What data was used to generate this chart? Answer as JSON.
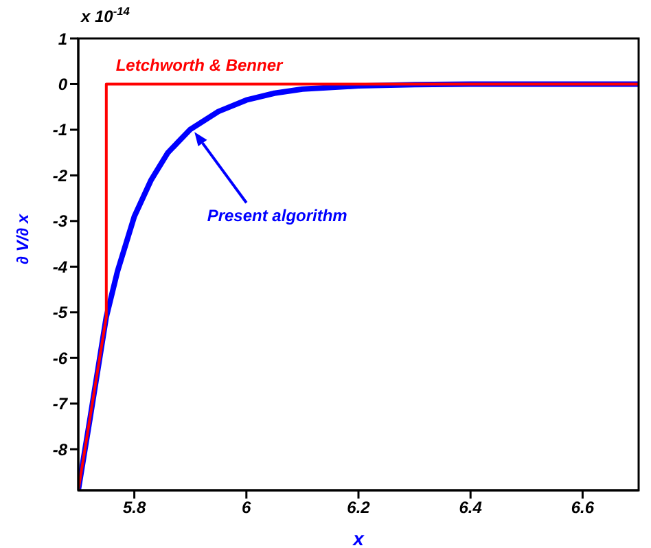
{
  "chart_data": {
    "type": "line",
    "xlabel": "x",
    "ylabel": "∂ V/∂ x",
    "annotations": [
      "x 10$^{-14}$"
    ],
    "xlim": [
      5.7,
      6.7
    ],
    "xticks": [
      5.8,
      6,
      6.2,
      6.4,
      6.6
    ],
    "ylim": [
      -8.9,
      1
    ],
    "yticks": [
      1,
      0,
      -1,
      -2,
      -3,
      -4,
      -5,
      -6,
      -7,
      -8
    ],
    "marker": "none",
    "line_style": "solid",
    "legend": false,
    "grid": false,
    "series": [
      {
        "name": "Letchworth & Benner",
        "color": "#ff0000",
        "x": [
          5.7,
          5.75,
          5.75,
          6.7
        ],
        "values": [
          -8.9,
          -5.1,
          0,
          0
        ]
      },
      {
        "name": "Present algorithm",
        "color": "#0000ff",
        "x": [
          5.7,
          5.72,
          5.75,
          5.77,
          5.8,
          5.83,
          5.86,
          5.9,
          5.95,
          6.0,
          6.05,
          6.1,
          6.2,
          6.3,
          6.4,
          6.7
        ],
        "values": [
          -8.9,
          -7.4,
          -5.1,
          -4.1,
          -2.9,
          -2.1,
          -1.5,
          -0.99,
          -0.6,
          -0.35,
          -0.2,
          -0.11,
          -0.04,
          -0.01,
          0,
          0
        ]
      }
    ]
  }
}
